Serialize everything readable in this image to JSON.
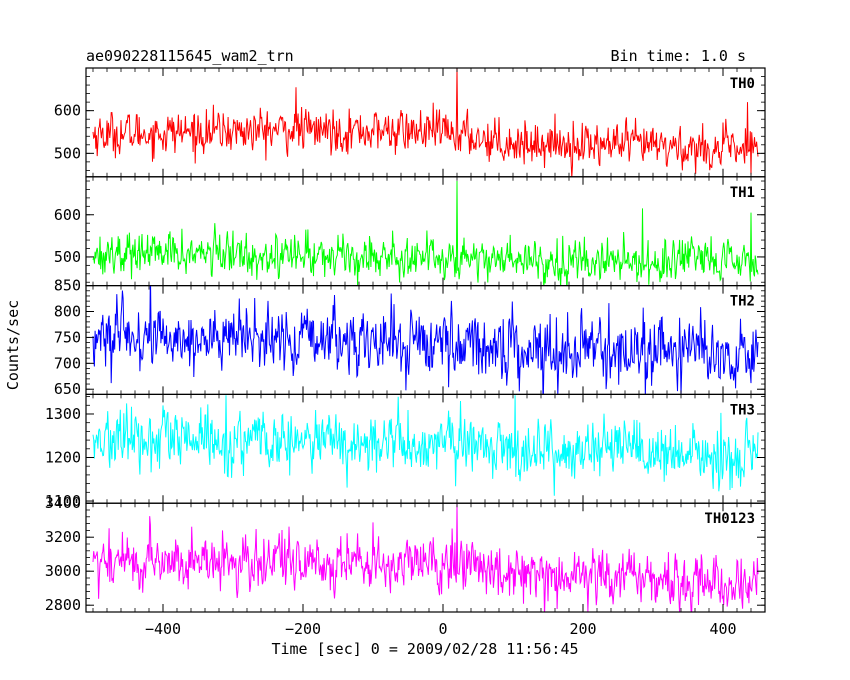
{
  "header": {
    "title": "ae090228115645_wam2_trn",
    "bin_time": "Bin time: 1.0 s"
  },
  "chart_data": {
    "type": "line",
    "xlabel": "Time [sec] 0 = 2009/02/28 11:56:45",
    "ylabel": "Counts/sec",
    "xlim": [
      -510,
      460
    ],
    "xticks": [
      -400,
      -200,
      0,
      200,
      400
    ],
    "x_start": -500,
    "x_end": 450,
    "x_step": 1,
    "grid": false,
    "series": [
      {
        "name": "TH0",
        "color": "#ff0000",
        "ylim": [
          445,
          700
        ],
        "yticks": [
          500,
          600
        ],
        "trend": [
          [
            -500,
            545
          ],
          [
            -200,
            555
          ],
          [
            0,
            550
          ],
          [
            100,
            525
          ],
          [
            250,
            520
          ],
          [
            450,
            505
          ]
        ],
        "noise_amplitude": 40,
        "spikes": [
          [
            20,
            700
          ],
          [
            -210,
            655
          ],
          [
            435,
            620
          ],
          [
            440,
            450
          ]
        ]
      },
      {
        "name": "TH1",
        "color": "#00ff00",
        "ylim": [
          432,
          690
        ],
        "yticks": [
          500,
          600
        ],
        "trend": [
          [
            -500,
            510
          ],
          [
            -200,
            505
          ],
          [
            0,
            500
          ],
          [
            200,
            490
          ],
          [
            450,
            485
          ]
        ],
        "noise_amplitude": 40,
        "spikes": [
          [
            20,
            680
          ],
          [
            285,
            615
          ],
          [
            440,
            605
          ]
        ]
      },
      {
        "name": "TH2",
        "color": "#0000ff",
        "ylim": [
          640,
          850
        ],
        "yticks": [
          650,
          700,
          750,
          800,
          850
        ],
        "trend": [
          [
            -500,
            750
          ],
          [
            -200,
            745
          ],
          [
            0,
            740
          ],
          [
            100,
            730
          ],
          [
            450,
            720
          ]
        ],
        "noise_amplitude": 50
      },
      {
        "name": "TH3",
        "color": "#00ffff",
        "ylim": [
          1095,
          1345
        ],
        "yticks": [
          1100,
          1200,
          1300
        ],
        "trend": [
          [
            -500,
            1240
          ],
          [
            -200,
            1235
          ],
          [
            0,
            1230
          ],
          [
            200,
            1215
          ],
          [
            450,
            1195
          ]
        ],
        "noise_amplitude": 55
      },
      {
        "name": "TH0123",
        "color": "#ff00ff",
        "ylim": [
          2760,
          3400
        ],
        "yticks": [
          2800,
          3000,
          3200,
          3400
        ],
        "trend": [
          [
            -500,
            3060
          ],
          [
            -200,
            3050
          ],
          [
            0,
            3040
          ],
          [
            200,
            2980
          ],
          [
            450,
            2920
          ]
        ],
        "noise_amplitude": 130,
        "spikes": [
          [
            20,
            3400
          ]
        ]
      }
    ]
  }
}
